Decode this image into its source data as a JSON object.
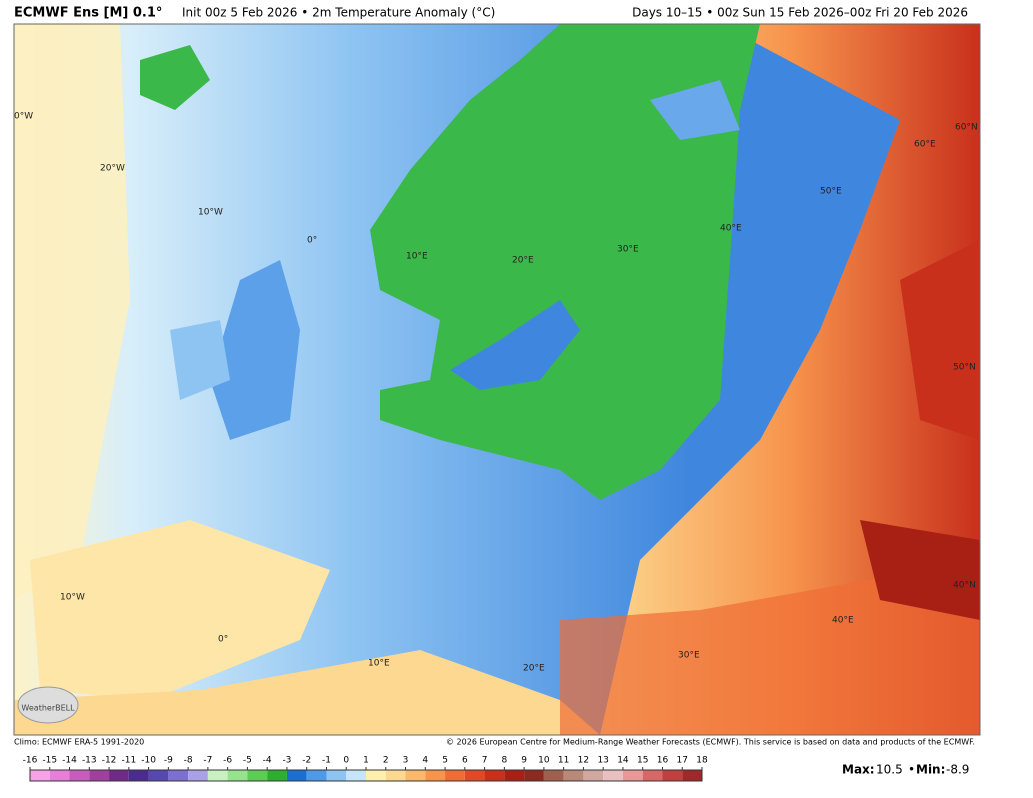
{
  "header": {
    "title": "ECMWF Ens [M] 0.1°",
    "subtitle": "Init 00z 5 Feb 2026 • 2m Temperature Anomaly (°C)",
    "valid": "Days 10–15 • 00z Sun 15 Feb 2026–00z Fri 20 Feb 2026"
  },
  "map": {
    "labels": [
      "0°W",
      "20°W",
      "10°W",
      "0°",
      "10°E",
      "20°E",
      "30°E",
      "40°E",
      "50°E",
      "60°E",
      "60°N",
      "50°N",
      "40°N",
      "10°W",
      "0°",
      "10°E",
      "20°E",
      "30°E",
      "40°E"
    ],
    "logo": "WeatherBELL"
  },
  "footer": {
    "climo": "Climo: ECMWF ERA-5 1991-2020",
    "copyright": "© 2026 European Centre for Medium-Range Weather Forecasts (ECMWF). This service is based on data and products of the ECMWF."
  },
  "colorbar": {
    "ticks": [
      -16,
      -15,
      -14,
      -13,
      -12,
      -11,
      -10,
      -9,
      -8,
      -7,
      -6,
      -5,
      -4,
      -3,
      -2,
      -1,
      0,
      1,
      2,
      3,
      4,
      5,
      6,
      7,
      8,
      9,
      10,
      11,
      12,
      13,
      14,
      15,
      16,
      17,
      18
    ],
    "colors": [
      "#f7a1e6",
      "#e77fd8",
      "#c85cbd",
      "#a0409e",
      "#6f2a86",
      "#4a2c8e",
      "#5748b0",
      "#7b6fd0",
      "#a9a1e6",
      "#c9f0c0",
      "#96e28e",
      "#5ccc55",
      "#2eae2e",
      "#1a6fd0",
      "#4e9ae6",
      "#8ec4f2",
      "#c6e4fa",
      "#fff0b0",
      "#fcd890",
      "#fab86c",
      "#f7944c",
      "#ef6c34",
      "#e04826",
      "#c8301c",
      "#a82014",
      "#8a2a20",
      "#a06050",
      "#b88878",
      "#d0a8a0",
      "#e8c0c0",
      "#e89898",
      "#d86868",
      "#c04040",
      "#a02828"
    ]
  },
  "stats": {
    "max_label": "Max:",
    "max": 10.5,
    "separator": "•",
    "min_label": "Min:",
    "min": -8.9
  }
}
